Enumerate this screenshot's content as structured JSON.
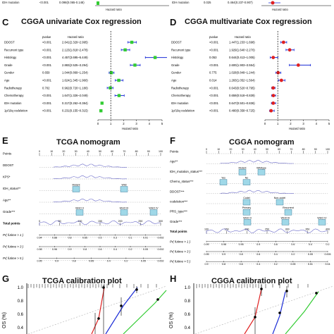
{
  "top_strip": {
    "left": {
      "row_label": "IDH mutation",
      "pvalue": "<0.001",
      "hr": "0.098(0.065-0.148)",
      "axis_label": "Hazard ratio"
    },
    "right": {
      "row_label": "IDH mutation",
      "pvalue": "0.025",
      "hr": "0.464(0.237-0.907)",
      "axis_label": "Hazard ratio"
    }
  },
  "panel_c": {
    "letter": "C",
    "title": "CGGA univariate  Cox regression",
    "col_pvalue": "pvalue",
    "col_hr": "Hazard ratio",
    "axis_label": "Hazard ratio",
    "ticks": [
      "0",
      "1",
      "2",
      "3",
      "4",
      "5"
    ],
    "rows": [
      {
        "label": "DDOST",
        "p": "<0.001",
        "hr": "2.641(2.329~2.995)",
        "est": 2.641,
        "lo": 2.329,
        "hi": 2.995
      },
      {
        "label": "Recurrent type",
        "p": "<0.001",
        "hr": "2.123(1.818~2.478)",
        "est": 2.123,
        "lo": 1.818,
        "hi": 2.478
      },
      {
        "label": "Histology",
        "p": "<0.001",
        "hr": "4.457(3.695~5.449)",
        "est": 4.457,
        "lo": 3.695,
        "hi": 5.449
      },
      {
        "label": "Grade",
        "p": "<0.001",
        "hr": "2.883(2.525~3.294)",
        "est": 2.883,
        "lo": 2.525,
        "hi": 3.294
      },
      {
        "label": "Gender",
        "p": "0.659",
        "hr": "1.044(0.869~1.254)",
        "est": 1.044,
        "lo": 0.869,
        "hi": 1.254
      },
      {
        "label": "Age",
        "p": "<0.001",
        "hr": "1.624(1.345~1.960)",
        "est": 1.624,
        "lo": 1.345,
        "hi": 1.96
      },
      {
        "label": "Radiotherapy",
        "p": "0.702",
        "hr": "0.962(0.720~1.180)",
        "est": 0.962,
        "lo": 0.72,
        "hi": 1.18
      },
      {
        "label": "Chemotherapy",
        "p": "<0.001",
        "hr": "1.647(1.326~2.049)",
        "est": 1.647,
        "lo": 1.326,
        "hi": 2.049
      },
      {
        "label": "IDH mutation",
        "p": "<0.001",
        "hr": "0.317(0.262~0.384)",
        "est": 0.317,
        "lo": 0.262,
        "hi": 0.384
      },
      {
        "label": "1p/19q codeletion",
        "p": "<0.001",
        "hr": "0.231(0.155~0.315)",
        "est": 0.231,
        "lo": 0.155,
        "hi": 0.315
      }
    ]
  },
  "panel_d": {
    "letter": "D",
    "title": "CGGA multivariate Cox regression",
    "col_pvalue": "pvalue",
    "col_hr": "Hazard ratio",
    "axis_label": "Hazard ratio",
    "ticks": [
      "0",
      "1",
      "2",
      "3",
      "4",
      "5"
    ],
    "rows": [
      {
        "label": "DDOST",
        "p": "<0.001",
        "hr": "1.447(1.233~1.698)",
        "est": 1.447,
        "lo": 1.233,
        "hi": 1.698
      },
      {
        "label": "Recurrent type",
        "p": "<0.001",
        "hr": "1.929(1.640~2.270)",
        "est": 1.929,
        "lo": 1.64,
        "hi": 2.27
      },
      {
        "label": "Histology",
        "p": "0.053",
        "hr": "0.644(0.413~1.005)",
        "est": 0.644,
        "lo": 0.413,
        "hi": 1.005
      },
      {
        "label": "Grade",
        "p": "<0.001",
        "hr": "2.600(1.903~3.554)",
        "est": 2.6,
        "lo": 1.903,
        "hi": 3.554
      },
      {
        "label": "Gender",
        "p": "0.775",
        "hr": "1.028(0.849~1.244)",
        "est": 1.028,
        "lo": 0.849,
        "hi": 1.244
      },
      {
        "label": "Age",
        "p": "0.014",
        "hr": "1.283(1.052~1.564)",
        "est": 1.283,
        "lo": 1.052,
        "hi": 1.564
      },
      {
        "label": "Radiotherapy",
        "p": "<0.001",
        "hr": "0.643(0.520~0.795)",
        "est": 0.643,
        "lo": 0.52,
        "hi": 0.795
      },
      {
        "label": "Chemotherapy",
        "p": "<0.001",
        "hr": "0.659(0.518~0.839)",
        "est": 0.659,
        "lo": 0.518,
        "hi": 0.839
      },
      {
        "label": "IDH mutation",
        "p": "<0.001",
        "hr": "0.647(0.501~0.836)",
        "est": 0.647,
        "lo": 0.501,
        "hi": 0.836
      },
      {
        "label": "1p/19q codeletion",
        "p": "<0.001",
        "hr": "0.480(0.358~0.725)",
        "est": 0.48,
        "lo": 0.358,
        "hi": 0.725
      }
    ]
  },
  "panel_e": {
    "letter": "E",
    "title": "TCGA nomogram",
    "rows": [
      {
        "label": "Points",
        "type": "points"
      },
      {
        "label": "DDOST",
        "type": "density"
      },
      {
        "label": "KPS*",
        "type": "density"
      },
      {
        "label": "IDH_status**",
        "type": "box",
        "levels": [
          "Mutant",
          "Wild"
        ]
      },
      {
        "label": "Age**",
        "type": "density"
      },
      {
        "label": "Grade***",
        "type": "box",
        "levels": [
          "WHO II",
          "WHO III",
          "WHO IV"
        ]
      },
      {
        "label": "Total points",
        "type": "total"
      },
      {
        "label": "Pr( futime > 1 )",
        "type": "scale",
        "ticks": [
          "0.94",
          "0.88",
          "0.8",
          "0.65",
          "0.5",
          "0.3",
          "0.1",
          "0.01",
          "0.002"
        ]
      },
      {
        "label": "Pr( futime > 3 )",
        "type": "scale",
        "ticks": [
          "0.98",
          "0.96",
          "0.9",
          "0.8",
          "0.6",
          "0.4",
          "0.2",
          "0.05",
          "0.002"
        ]
      },
      {
        "label": "Pr( futime > 5 )",
        "type": "scale",
        "ticks": [
          "0.95",
          "0.9",
          "0.8",
          "0.65",
          "0.4",
          "0.2",
          "0.05",
          "0.002"
        ]
      }
    ],
    "points_ticks": [
      "0",
      "10",
      "20",
      "30",
      "40",
      "50",
      "60",
      "70",
      "80",
      "90",
      "100"
    ],
    "total_ticks": [
      "0",
      "50",
      "100",
      "150",
      "200",
      "250",
      "300"
    ]
  },
  "panel_f": {
    "letter": "F",
    "title": "CGGA nomogram",
    "rows": [
      {
        "label": "Points",
        "type": "points"
      },
      {
        "label": "Age**",
        "type": "density"
      },
      {
        "label": "IDH_mutation_status***",
        "type": "box",
        "levels": [
          "Mutant",
          "Wildtype"
        ]
      },
      {
        "label": "Chemo_status***",
        "type": "box",
        "levels": [
          "Yes",
          "No"
        ]
      },
      {
        "label": "DDOST***",
        "type": "density"
      },
      {
        "label": "codeletion***",
        "type": "box",
        "levels": [
          "Codel",
          "Non-codel"
        ]
      },
      {
        "label": "PRS_type***",
        "type": "box",
        "levels": [
          "Primary",
          "Recurrent"
        ]
      },
      {
        "label": "Grade***",
        "type": "box",
        "levels": [
          "WHO II",
          "WHO III",
          "WHO IV"
        ]
      },
      {
        "label": "Total points",
        "type": "total"
      },
      {
        "label": "Pr( futime > 1 )",
        "type": "scale",
        "ticks": [
          "0.99",
          "0.98",
          "0.95",
          "0.9",
          "0.8",
          "0.6",
          "0.4",
          "0.2"
        ]
      },
      {
        "label": "Pr( futime > 3 )",
        "type": "scale",
        "ticks": [
          "0.95",
          "0.9",
          "0.8",
          "0.6",
          "0.4",
          "0.2",
          "0.05",
          "0.005"
        ]
      },
      {
        "label": "Pr( futime > 5 )",
        "type": "scale",
        "ticks": [
          "0.9",
          "0.8",
          "0.6",
          "0.4",
          "0.2",
          "0.05",
          "0.01",
          "0.04"
        ]
      }
    ],
    "points_ticks": [
      "0",
      "10",
      "20",
      "30",
      "40",
      "50",
      "60",
      "70",
      "80",
      "90",
      "100"
    ],
    "total_ticks": [
      "100",
      "150",
      "200",
      "250",
      "300",
      "350",
      "400"
    ]
  },
  "panel_g": {
    "letter": "G",
    "title": "TCGA calibration plot",
    "y_ticks": [
      "1.0",
      "0.8",
      "0.6",
      "0.4"
    ],
    "y_label": "OS (%)"
  },
  "panel_h": {
    "letter": "H",
    "title": "CGGA calibration plot",
    "y_ticks": [
      "1.0",
      "0.8",
      "0.6",
      "0.4"
    ],
    "y_label": "OS (%)"
  },
  "colors": {
    "green": "#33cc33",
    "blue": "#1a2bd6",
    "red": "#e02020",
    "box_fill": "#9fd8e8",
    "density": "#6a6ac8",
    "dashed": "#000000"
  }
}
